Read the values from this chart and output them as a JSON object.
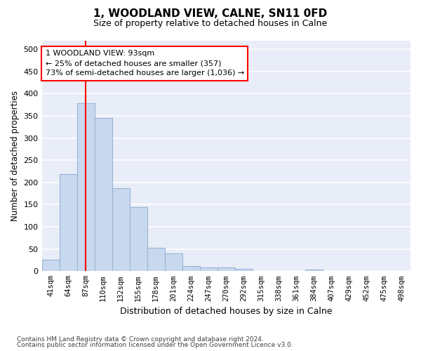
{
  "title": "1, WOODLAND VIEW, CALNE, SN11 0FD",
  "subtitle": "Size of property relative to detached houses in Calne",
  "xlabel": "Distribution of detached houses by size in Calne",
  "ylabel": "Number of detached properties",
  "bar_color": "#c8d8ee",
  "bar_edge_color": "#9ab4d4",
  "background_color": "#e8edf8",
  "grid_color": "#ffffff",
  "categories": [
    "41sqm",
    "64sqm",
    "87sqm",
    "110sqm",
    "132sqm",
    "155sqm",
    "178sqm",
    "201sqm",
    "224sqm",
    "247sqm",
    "270sqm",
    "292sqm",
    "315sqm",
    "338sqm",
    "361sqm",
    "384sqm",
    "407sqm",
    "429sqm",
    "452sqm",
    "475sqm",
    "498sqm"
  ],
  "values": [
    25,
    218,
    378,
    345,
    187,
    145,
    53,
    40,
    12,
    9,
    9,
    5,
    1,
    0,
    0,
    4,
    1,
    0,
    1,
    0,
    1
  ],
  "ylim": [
    0,
    520
  ],
  "yticks": [
    0,
    50,
    100,
    150,
    200,
    250,
    300,
    350,
    400,
    450,
    500
  ],
  "property_label": "1 WOODLAND VIEW: 93sqm",
  "annotation_line1": "← 25% of detached houses are smaller (357)",
  "annotation_line2": "73% of semi-detached houses are larger (1,036) →",
  "vline_position": 2.0,
  "footnote1": "Contains HM Land Registry data © Crown copyright and database right 2024.",
  "footnote2": "Contains public sector information licensed under the Open Government Licence v3.0."
}
